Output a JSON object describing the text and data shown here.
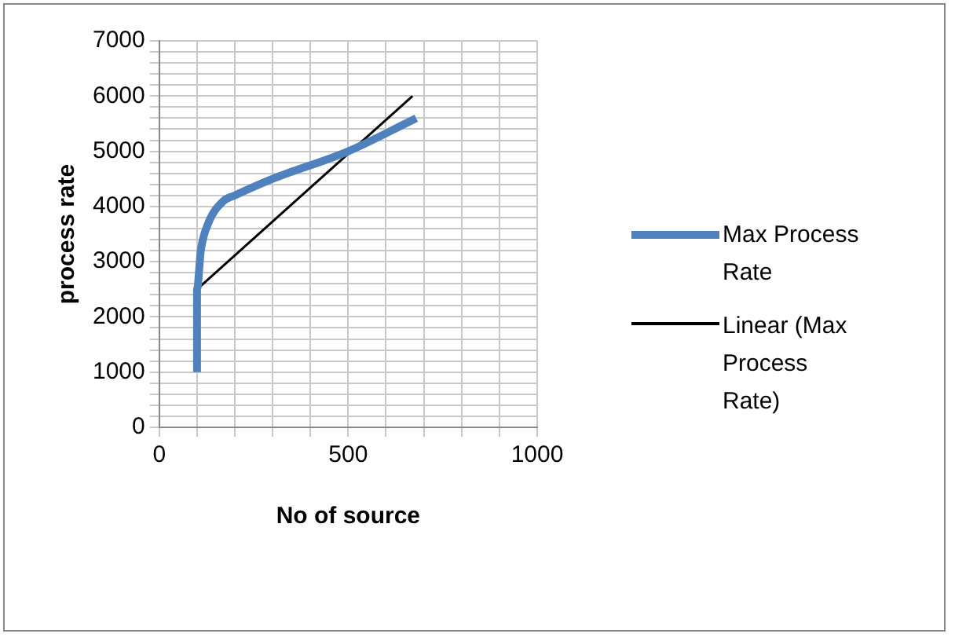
{
  "chart_data": {
    "type": "line",
    "xlabel": "No of source",
    "ylabel": "process rate",
    "xlim": [
      0,
      1000
    ],
    "xticks": [
      0,
      {
        "value": 100,
        "label": null
      },
      {
        "value": 200,
        "label": null
      },
      {
        "value": 300,
        "label": null
      },
      {
        "value": 400,
        "label": null
      },
      500,
      {
        "value": 600,
        "label": null
      },
      {
        "value": 700,
        "label": null
      },
      {
        "value": 800,
        "label": null
      },
      {
        "value": 900,
        "label": null
      },
      1000
    ],
    "ylim": [
      0,
      7000
    ],
    "yticks": [
      0,
      {
        "value": 200,
        "label": null
      },
      {
        "value": 400,
        "label": null
      },
      {
        "value": 600,
        "label": null
      },
      {
        "value": 800,
        "label": null
      },
      1000,
      {
        "value": 1200,
        "label": null
      },
      {
        "value": 1400,
        "label": null
      },
      {
        "value": 1600,
        "label": null
      },
      {
        "value": 1800,
        "label": null
      },
      2000,
      {
        "value": 2200,
        "label": null
      },
      {
        "value": 2400,
        "label": null
      },
      {
        "value": 2600,
        "label": null
      },
      {
        "value": 2800,
        "label": null
      },
      3000,
      {
        "value": 3200,
        "label": null
      },
      {
        "value": 3400,
        "label": null
      },
      {
        "value": 3600,
        "label": null
      },
      {
        "value": 3800,
        "label": null
      },
      4000,
      {
        "value": 4200,
        "label": null
      },
      {
        "value": 4400,
        "label": null
      },
      {
        "value": 4600,
        "label": null
      },
      {
        "value": 4800,
        "label": null
      },
      5000,
      {
        "value": 5200,
        "label": null
      },
      {
        "value": 5400,
        "label": null
      },
      {
        "value": 5600,
        "label": null
      },
      {
        "value": 5800,
        "label": null
      },
      6000,
      {
        "value": 6200,
        "label": null
      },
      {
        "value": 6400,
        "label": null
      },
      {
        "value": 6600,
        "label": null
      },
      {
        "value": 6800,
        "label": null
      },
      7000
    ],
    "grid": true,
    "legend": "right",
    "marker": "none",
    "series": [
      {
        "name": "Max Process Rate",
        "color": "#4f81bd",
        "x": [
          100,
          100,
          110,
          130,
          170,
          200,
          300,
          500,
          680
        ],
        "values": [
          1000,
          2500,
          3200,
          3700,
          4100,
          4200,
          4500,
          5000,
          5600
        ]
      },
      {
        "name": "Linear (Max Process Rate)",
        "color": "#000000",
        "x": [
          100,
          670
        ],
        "values": [
          2500,
          6000
        ]
      }
    ]
  }
}
